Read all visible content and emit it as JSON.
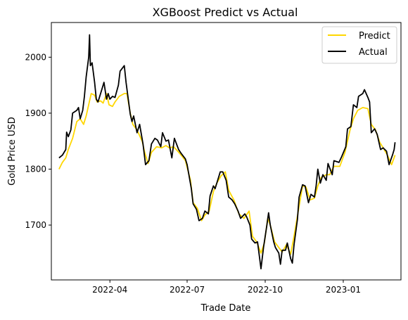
{
  "chart_data": {
    "type": "line",
    "title": "XGBoost Predict vs Actual",
    "xlabel": "Trade Date",
    "ylabel": "Gold Price USD",
    "xlim": [
      "2022-01-22",
      "2023-03-10"
    ],
    "ylim": [
      1602,
      2062
    ],
    "x_ticks": [
      {
        "date": "2022-04-01",
        "label": "2022-04"
      },
      {
        "date": "2022-07-01",
        "label": "2022-07"
      },
      {
        "date": "2022-10-01",
        "label": "2022-10"
      },
      {
        "date": "2023-01-01",
        "label": "2023-01"
      }
    ],
    "y_ticks": [
      1700,
      1800,
      1900,
      2000
    ],
    "grid": false,
    "legend_position": "top-right",
    "series": [
      {
        "name": "Predict",
        "color": "#FFD700",
        "points": [
          [
            "2022-01-31",
            1800
          ],
          [
            "2022-02-04",
            1812
          ],
          [
            "2022-02-08",
            1820
          ],
          [
            "2022-02-11",
            1835
          ],
          [
            "2022-02-16",
            1855
          ],
          [
            "2022-02-21",
            1885
          ],
          [
            "2022-02-25",
            1890
          ],
          [
            "2022-03-01",
            1880
          ],
          [
            "2022-03-04",
            1895
          ],
          [
            "2022-03-08",
            1922
          ],
          [
            "2022-03-10",
            1935
          ],
          [
            "2022-03-14",
            1932
          ],
          [
            "2022-03-17",
            1920
          ],
          [
            "2022-03-21",
            1922
          ],
          [
            "2022-03-24",
            1918
          ],
          [
            "2022-03-28",
            1935
          ],
          [
            "2022-03-31",
            1915
          ],
          [
            "2022-04-04",
            1912
          ],
          [
            "2022-04-07",
            1920
          ],
          [
            "2022-04-12",
            1930
          ],
          [
            "2022-04-18",
            1935
          ],
          [
            "2022-04-21",
            1935
          ],
          [
            "2022-04-25",
            1900
          ],
          [
            "2022-04-28",
            1880
          ],
          [
            "2022-05-03",
            1870
          ],
          [
            "2022-05-09",
            1850
          ],
          [
            "2022-05-12",
            1830
          ],
          [
            "2022-05-16",
            1810
          ],
          [
            "2022-05-20",
            1830
          ],
          [
            "2022-05-26",
            1840
          ],
          [
            "2022-06-01",
            1838
          ],
          [
            "2022-06-06",
            1842
          ],
          [
            "2022-06-10",
            1838
          ],
          [
            "2022-06-15",
            1840
          ],
          [
            "2022-06-20",
            1832
          ],
          [
            "2022-06-24",
            1825
          ],
          [
            "2022-06-29",
            1815
          ],
          [
            "2022-07-05",
            1780
          ],
          [
            "2022-07-08",
            1740
          ],
          [
            "2022-07-13",
            1730
          ],
          [
            "2022-07-18",
            1708
          ],
          [
            "2022-07-22",
            1718
          ],
          [
            "2022-07-27",
            1725
          ],
          [
            "2022-08-01",
            1760
          ],
          [
            "2022-08-05",
            1775
          ],
          [
            "2022-08-10",
            1788
          ],
          [
            "2022-08-15",
            1795
          ],
          [
            "2022-08-19",
            1762
          ],
          [
            "2022-08-25",
            1745
          ],
          [
            "2022-08-31",
            1720
          ],
          [
            "2022-09-06",
            1712
          ],
          [
            "2022-09-12",
            1725
          ],
          [
            "2022-09-16",
            1680
          ],
          [
            "2022-09-21",
            1670
          ],
          [
            "2022-09-26",
            1650
          ],
          [
            "2022-09-30",
            1668
          ],
          [
            "2022-10-04",
            1712
          ],
          [
            "2022-10-07",
            1700
          ],
          [
            "2022-10-12",
            1670
          ],
          [
            "2022-10-17",
            1660
          ],
          [
            "2022-10-21",
            1652
          ],
          [
            "2022-10-26",
            1665
          ],
          [
            "2022-10-31",
            1648
          ],
          [
            "2022-11-04",
            1680
          ],
          [
            "2022-11-09",
            1725
          ],
          [
            "2022-11-14",
            1770
          ],
          [
            "2022-11-18",
            1768
          ],
          [
            "2022-11-23",
            1745
          ],
          [
            "2022-11-28",
            1748
          ],
          [
            "2022-12-02",
            1770
          ],
          [
            "2022-12-06",
            1785
          ],
          [
            "2022-12-12",
            1790
          ],
          [
            "2022-12-16",
            1790
          ],
          [
            "2022-12-21",
            1805
          ],
          [
            "2022-12-28",
            1805
          ],
          [
            "2023-01-03",
            1830
          ],
          [
            "2023-01-09",
            1870
          ],
          [
            "2023-01-13",
            1890
          ],
          [
            "2023-01-18",
            1905
          ],
          [
            "2023-01-24",
            1910
          ],
          [
            "2023-01-30",
            1908
          ],
          [
            "2023-02-03",
            1880
          ],
          [
            "2023-02-08",
            1870
          ],
          [
            "2023-02-13",
            1848
          ],
          [
            "2023-02-17",
            1838
          ],
          [
            "2023-02-22",
            1825
          ],
          [
            "2023-02-27",
            1808
          ],
          [
            "2023-03-03",
            1825
          ]
        ]
      },
      {
        "name": "Actual",
        "color": "#000000",
        "points": [
          [
            "2022-01-31",
            1820
          ],
          [
            "2022-02-04",
            1825
          ],
          [
            "2022-02-08",
            1835
          ],
          [
            "2022-02-09",
            1866
          ],
          [
            "2022-02-11",
            1858
          ],
          [
            "2022-02-14",
            1870
          ],
          [
            "2022-02-16",
            1900
          ],
          [
            "2022-02-21",
            1905
          ],
          [
            "2022-02-23",
            1910
          ],
          [
            "2022-02-25",
            1890
          ],
          [
            "2022-02-28",
            1905
          ],
          [
            "2022-03-02",
            1930
          ],
          [
            "2022-03-04",
            1965
          ],
          [
            "2022-03-07",
            2000
          ],
          [
            "2022-03-08",
            2040
          ],
          [
            "2022-03-09",
            1985
          ],
          [
            "2022-03-11",
            1990
          ],
          [
            "2022-03-14",
            1955
          ],
          [
            "2022-03-16",
            1925
          ],
          [
            "2022-03-18",
            1920
          ],
          [
            "2022-03-21",
            1935
          ],
          [
            "2022-03-23",
            1945
          ],
          [
            "2022-03-25",
            1955
          ],
          [
            "2022-03-28",
            1925
          ],
          [
            "2022-03-30",
            1935
          ],
          [
            "2022-04-01",
            1925
          ],
          [
            "2022-04-04",
            1930
          ],
          [
            "2022-04-07",
            1928
          ],
          [
            "2022-04-11",
            1950
          ],
          [
            "2022-04-13",
            1975
          ],
          [
            "2022-04-18",
            1985
          ],
          [
            "2022-04-20",
            1955
          ],
          [
            "2022-04-22",
            1932
          ],
          [
            "2022-04-25",
            1898
          ],
          [
            "2022-04-27",
            1885
          ],
          [
            "2022-04-29",
            1895
          ],
          [
            "2022-05-03",
            1865
          ],
          [
            "2022-05-06",
            1880
          ],
          [
            "2022-05-10",
            1845
          ],
          [
            "2022-05-13",
            1808
          ],
          [
            "2022-05-17",
            1815
          ],
          [
            "2022-05-20",
            1845
          ],
          [
            "2022-05-24",
            1855
          ],
          [
            "2022-05-27",
            1852
          ],
          [
            "2022-05-31",
            1840
          ],
          [
            "2022-06-02",
            1865
          ],
          [
            "2022-06-06",
            1850
          ],
          [
            "2022-06-09",
            1852
          ],
          [
            "2022-06-13",
            1820
          ],
          [
            "2022-06-16",
            1855
          ],
          [
            "2022-06-21",
            1835
          ],
          [
            "2022-06-24",
            1828
          ],
          [
            "2022-06-29",
            1818
          ],
          [
            "2022-07-01",
            1808
          ],
          [
            "2022-07-06",
            1765
          ],
          [
            "2022-07-08",
            1738
          ],
          [
            "2022-07-12",
            1728
          ],
          [
            "2022-07-15",
            1708
          ],
          [
            "2022-07-19",
            1712
          ],
          [
            "2022-07-22",
            1725
          ],
          [
            "2022-07-26",
            1720
          ],
          [
            "2022-07-28",
            1752
          ],
          [
            "2022-08-01",
            1770
          ],
          [
            "2022-08-03",
            1765
          ],
          [
            "2022-08-05",
            1775
          ],
          [
            "2022-08-09",
            1795
          ],
          [
            "2022-08-12",
            1795
          ],
          [
            "2022-08-16",
            1780
          ],
          [
            "2022-08-19",
            1750
          ],
          [
            "2022-08-23",
            1745
          ],
          [
            "2022-08-26",
            1738
          ],
          [
            "2022-08-30",
            1725
          ],
          [
            "2022-09-02",
            1712
          ],
          [
            "2022-09-07",
            1720
          ],
          [
            "2022-09-09",
            1715
          ],
          [
            "2022-09-13",
            1700
          ],
          [
            "2022-09-15",
            1675
          ],
          [
            "2022-09-19",
            1668
          ],
          [
            "2022-09-22",
            1670
          ],
          [
            "2022-09-26",
            1622
          ],
          [
            "2022-09-29",
            1660
          ],
          [
            "2022-10-03",
            1700
          ],
          [
            "2022-10-05",
            1722
          ],
          [
            "2022-10-07",
            1700
          ],
          [
            "2022-10-11",
            1670
          ],
          [
            "2022-10-13",
            1660
          ],
          [
            "2022-10-17",
            1650
          ],
          [
            "2022-10-19",
            1630
          ],
          [
            "2022-10-21",
            1655
          ],
          [
            "2022-10-25",
            1655
          ],
          [
            "2022-10-27",
            1668
          ],
          [
            "2022-10-31",
            1640
          ],
          [
            "2022-11-02",
            1632
          ],
          [
            "2022-11-04",
            1665
          ],
          [
            "2022-11-08",
            1710
          ],
          [
            "2022-11-10",
            1750
          ],
          [
            "2022-11-14",
            1772
          ],
          [
            "2022-11-17",
            1770
          ],
          [
            "2022-11-21",
            1740
          ],
          [
            "2022-11-24",
            1755
          ],
          [
            "2022-11-28",
            1750
          ],
          [
            "2022-11-30",
            1770
          ],
          [
            "2022-12-02",
            1800
          ],
          [
            "2022-12-05",
            1775
          ],
          [
            "2022-12-08",
            1790
          ],
          [
            "2022-12-12",
            1780
          ],
          [
            "2022-12-14",
            1810
          ],
          [
            "2022-12-19",
            1790
          ],
          [
            "2022-12-21",
            1815
          ],
          [
            "2022-12-27",
            1812
          ],
          [
            "2022-12-30",
            1822
          ],
          [
            "2023-01-04",
            1840
          ],
          [
            "2023-01-06",
            1872
          ],
          [
            "2023-01-10",
            1876
          ],
          [
            "2023-01-13",
            1915
          ],
          [
            "2023-01-17",
            1910
          ],
          [
            "2023-01-19",
            1930
          ],
          [
            "2023-01-24",
            1935
          ],
          [
            "2023-01-26",
            1942
          ],
          [
            "2023-01-30",
            1928
          ],
          [
            "2023-02-01",
            1920
          ],
          [
            "2023-02-03",
            1865
          ],
          [
            "2023-02-07",
            1872
          ],
          [
            "2023-02-10",
            1862
          ],
          [
            "2023-02-14",
            1835
          ],
          [
            "2023-02-17",
            1838
          ],
          [
            "2023-02-21",
            1832
          ],
          [
            "2023-02-24",
            1808
          ],
          [
            "2023-02-28",
            1825
          ],
          [
            "2023-03-02",
            1835
          ],
          [
            "2023-03-03",
            1848
          ]
        ]
      }
    ]
  }
}
